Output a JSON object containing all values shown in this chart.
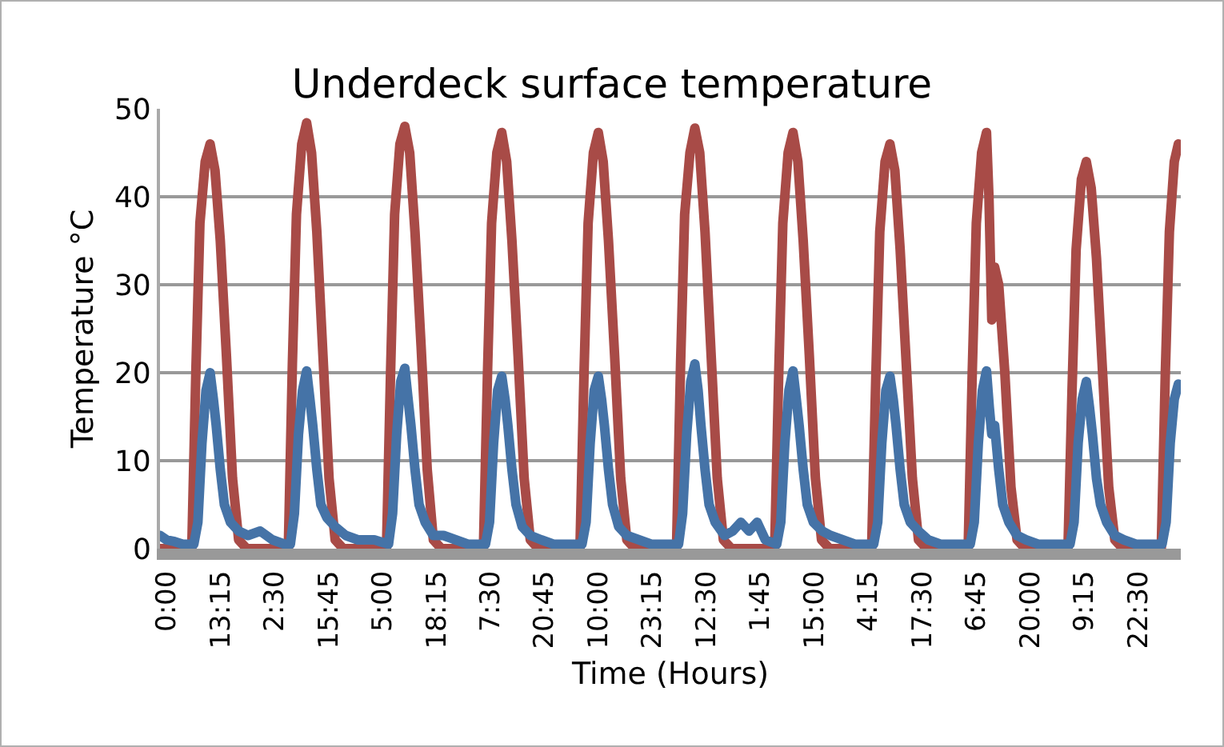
{
  "chart_data": {
    "type": "line",
    "title": "Underdeck surface temperature",
    "xlabel": "Time (Hours)",
    "ylabel": "Temperature °C",
    "xlim": [
      "--01-01T22:24",
      "--01-12T09:00"
    ],
    "ylim": [
      0,
      50
    ],
    "yticks": [
      0,
      10,
      20,
      30,
      40,
      50
    ],
    "xticks": [
      {
        "value": "--01-02T00:00",
        "label": "0:00"
      },
      {
        "value": "--01-02T13:15",
        "label": "13:15"
      },
      {
        "value": "--01-03T02:30",
        "label": "2:30"
      },
      {
        "value": "--01-03T15:45",
        "label": "15:45"
      },
      {
        "value": "--01-04T05:00",
        "label": "5:00"
      },
      {
        "value": "--01-04T18:15",
        "label": "18:15"
      },
      {
        "value": "--01-05T07:30",
        "label": "7:30"
      },
      {
        "value": "--01-05T20:45",
        "label": "20:45"
      },
      {
        "value": "--01-06T10:00",
        "label": "10:00"
      },
      {
        "value": "--01-06T23:15",
        "label": "23:15"
      },
      {
        "value": "--01-07T12:30",
        "label": "12:30"
      },
      {
        "value": "--01-08T01:45",
        "label": "1:45"
      },
      {
        "value": "--01-08T15:00",
        "label": "15:00"
      },
      {
        "value": "--01-09T04:15",
        "label": "4:15"
      },
      {
        "value": "--01-09T17:30",
        "label": "17:30"
      },
      {
        "value": "--01-10T06:45",
        "label": "6:45"
      },
      {
        "value": "--01-10T20:00",
        "label": "20:00"
      },
      {
        "value": "--01-11T09:15",
        "label": "9:15"
      },
      {
        "value": "--01-11T22:30",
        "label": "22:30"
      }
    ],
    "grid": "y",
    "marker": "none",
    "line_style": "solid",
    "series": [
      {
        "color": "#a84b47",
        "x": [
          "--01-01T22:24",
          "--01-02T06:12",
          "--01-02T07:12",
          "--01-02T08:12",
          "--01-02T09:30",
          "--01-02T10:42",
          "--01-02T11:54",
          "--01-02T13:12",
          "--01-02T14:42",
          "--01-02T16:12",
          "--01-02T17:42",
          "--01-02T19:42",
          "--01-03T05:54",
          "--01-03T06:54",
          "--01-03T07:54",
          "--01-03T09:12",
          "--01-03T10:24",
          "--01-03T11:36",
          "--01-03T12:54",
          "--01-03T14:24",
          "--01-03T15:54",
          "--01-03T17:24",
          "--01-03T19:24",
          "--01-04T06:00",
          "--01-04T07:00",
          "--01-04T08:00",
          "--01-04T09:18",
          "--01-04T10:30",
          "--01-04T11:42",
          "--01-04T13:00",
          "--01-04T14:30",
          "--01-04T16:00",
          "--01-04T17:30",
          "--01-04T19:30",
          "--01-05T05:48",
          "--01-05T06:48",
          "--01-05T07:48",
          "--01-05T09:06",
          "--01-05T10:18",
          "--01-05T11:30",
          "--01-05T12:48",
          "--01-05T14:18",
          "--01-05T15:48",
          "--01-05T17:18",
          "--01-05T19:18",
          "--01-06T05:30",
          "--01-06T06:30",
          "--01-06T07:30",
          "--01-06T08:48",
          "--01-06T10:00",
          "--01-06T11:12",
          "--01-06T12:30",
          "--01-06T14:00",
          "--01-06T15:30",
          "--01-06T17:00",
          "--01-06T19:00",
          "--01-07T05:12",
          "--01-07T06:12",
          "--01-07T07:12",
          "--01-07T08:30",
          "--01-07T09:42",
          "--01-07T10:54",
          "--01-07T12:12",
          "--01-07T13:42",
          "--01-07T15:12",
          "--01-07T16:42",
          "--01-07T18:42",
          "--01-08T05:18",
          "--01-08T06:18",
          "--01-08T07:18",
          "--01-08T08:36",
          "--01-08T09:48",
          "--01-08T11:00",
          "--01-08T12:18",
          "--01-08T13:48",
          "--01-08T15:18",
          "--01-08T16:48",
          "--01-08T18:48",
          "--01-09T05:06",
          "--01-09T06:06",
          "--01-09T07:06",
          "--01-09T08:24",
          "--01-09T09:36",
          "--01-09T10:48",
          "--01-09T12:06",
          "--01-09T13:36",
          "--01-09T15:06",
          "--01-09T16:36",
          "--01-09T18:36",
          "--01-10T04:48",
          "--01-10T05:48",
          "--01-10T06:48",
          "--01-10T08:06",
          "--01-10T09:18",
          "--01-10T09:54",
          "--01-10T10:36",
          "--01-10T11:18",
          "--01-10T12:18",
          "--01-10T13:48",
          "--01-10T15:18",
          "--01-10T16:48",
          "--01-10T18:48",
          "--01-11T05:18",
          "--01-11T06:18",
          "--01-11T07:18",
          "--01-11T08:36",
          "--01-11T09:48",
          "--01-11T11:00",
          "--01-11T12:18",
          "--01-11T13:48",
          "--01-11T15:18",
          "--01-11T16:48",
          "--01-11T18:48",
          "--01-12T04:12",
          "--01-12T05:12",
          "--01-12T06:12",
          "--01-12T07:24",
          "--01-12T08:24"
        ],
        "values": [
          0,
          0,
          20,
          37,
          44,
          46,
          43,
          35,
          22,
          8,
          1,
          0,
          0,
          21,
          38,
          46,
          48.4,
          45,
          36,
          22,
          8,
          1,
          0,
          0,
          20,
          38,
          46,
          48,
          45,
          36,
          23,
          9,
          1,
          0,
          0,
          20,
          37,
          45,
          47.3,
          44,
          35,
          22,
          8,
          1,
          0,
          0,
          20,
          37,
          45,
          47.3,
          44,
          35,
          22,
          8,
          1,
          0,
          0,
          21,
          38,
          45,
          47.8,
          45,
          36,
          22,
          8,
          1,
          0,
          0,
          20,
          37,
          45,
          47.3,
          44,
          35,
          22,
          8,
          1,
          0,
          0,
          19,
          36,
          44,
          46,
          43,
          34,
          21,
          8,
          1,
          0,
          0,
          20,
          37,
          45,
          47.3,
          40,
          26,
          32,
          30,
          20,
          7,
          1,
          0,
          0,
          18,
          34,
          42,
          44,
          41,
          33,
          20,
          7,
          1,
          0,
          0,
          20,
          36,
          44,
          46
        ]
      },
      {
        "color": "#4573a7",
        "x": [
          "--01-01T22:24",
          "--01-02T00:00",
          "--01-02T02:00",
          "--01-02T04:00",
          "--01-02T06:42",
          "--01-02T07:42",
          "--01-02T08:42",
          "--01-02T09:42",
          "--01-02T10:42",
          "--01-02T11:30",
          "--01-02T12:12",
          "--01-02T13:12",
          "--01-02T14:12",
          "--01-02T15:42",
          "--01-02T17:42",
          "--01-02T20:00",
          "--01-02T23:00",
          "--01-03T02:00",
          "--01-03T05:00",
          "--01-03T06:24",
          "--01-03T07:24",
          "--01-03T08:24",
          "--01-03T09:24",
          "--01-03T10:24",
          "--01-03T11:12",
          "--01-03T11:54",
          "--01-03T12:54",
          "--01-03T13:54",
          "--01-03T15:24",
          "--01-03T17:24",
          "--01-03T20:00",
          "--01-03T23:00",
          "--01-04T03:00",
          "--01-04T06:30",
          "--01-04T07:30",
          "--01-04T08:30",
          "--01-04T09:30",
          "--01-04T10:30",
          "--01-04T11:18",
          "--01-04T12:00",
          "--01-04T13:00",
          "--01-04T14:00",
          "--01-04T15:30",
          "--01-04T17:30",
          "--01-04T20:00",
          "--01-04T23:00",
          "--01-05T02:00",
          "--01-05T06:18",
          "--01-05T07:18",
          "--01-05T08:18",
          "--01-05T09:18",
          "--01-05T10:18",
          "--01-05T11:06",
          "--01-05T11:48",
          "--01-05T12:48",
          "--01-05T13:48",
          "--01-05T15:18",
          "--01-05T17:18",
          "--01-05T20:00",
          "--01-05T23:00",
          "--01-06T02:00",
          "--01-06T06:00",
          "--01-06T07:00",
          "--01-06T08:00",
          "--01-06T09:00",
          "--01-06T10:00",
          "--01-06T10:48",
          "--01-06T11:30",
          "--01-06T12:30",
          "--01-06T13:30",
          "--01-06T15:00",
          "--01-06T17:00",
          "--01-06T20:00",
          "--01-06T23:00",
          "--01-07T02:00",
          "--01-07T05:42",
          "--01-07T06:42",
          "--01-07T07:42",
          "--01-07T08:42",
          "--01-07T09:42",
          "--01-07T10:30",
          "--01-07T11:12",
          "--01-07T12:12",
          "--01-07T13:12",
          "--01-07T14:42",
          "--01-07T17:00",
          "--01-07T19:00",
          "--01-07T21:00",
          "--01-07T23:00",
          "--01-08T01:00",
          "--01-08T03:00",
          "--01-08T05:48",
          "--01-08T06:48",
          "--01-08T07:48",
          "--01-08T08:48",
          "--01-08T09:48",
          "--01-08T10:36",
          "--01-08T11:18",
          "--01-08T12:18",
          "--01-08T13:18",
          "--01-08T14:48",
          "--01-08T17:00",
          "--01-08T19:00",
          "--01-08T22:00",
          "--01-09T01:00",
          "--01-09T05:36",
          "--01-09T06:36",
          "--01-09T07:36",
          "--01-09T08:36",
          "--01-09T09:36",
          "--01-09T10:24",
          "--01-09T11:06",
          "--01-09T12:06",
          "--01-09T13:06",
          "--01-09T14:36",
          "--01-09T16:36",
          "--01-09T19:00",
          "--01-09T22:00",
          "--01-10T02:00",
          "--01-10T05:18",
          "--01-10T06:18",
          "--01-10T07:18",
          "--01-10T08:18",
          "--01-10T09:18",
          "--01-10T10:00",
          "--01-10T10:36",
          "--01-10T11:18",
          "--01-10T12:18",
          "--01-10T13:18",
          "--01-10T14:48",
          "--01-10T16:48",
          "--01-10T19:00",
          "--01-10T22:00",
          "--01-11T02:00",
          "--01-11T05:48",
          "--01-11T06:48",
          "--01-11T07:48",
          "--01-11T08:48",
          "--01-11T09:48",
          "--01-11T10:36",
          "--01-11T11:18",
          "--01-11T12:18",
          "--01-11T13:18",
          "--01-11T14:48",
          "--01-11T16:48",
          "--01-11T19:00",
          "--01-11T22:00",
          "--01-12T01:00",
          "--01-12T04:24",
          "--01-12T05:24",
          "--01-12T06:24",
          "--01-12T07:24",
          "--01-12T08:24"
        ],
        "values": [
          1.5,
          1,
          0.8,
          0.5,
          0.5,
          3,
          12,
          18,
          20,
          17,
          14,
          9,
          5,
          3,
          2,
          1.5,
          2,
          1,
          0.5,
          0.5,
          4,
          13,
          18,
          20.2,
          17,
          14,
          9,
          5,
          3.5,
          2.5,
          1.5,
          1,
          1,
          0.5,
          4,
          13,
          19,
          20.5,
          17,
          14,
          9,
          5,
          3,
          1.5,
          1.5,
          1,
          0.5,
          0.5,
          3,
          12,
          18,
          19.6,
          17,
          14,
          9,
          5,
          2.5,
          1.5,
          1,
          0.5,
          0.5,
          0.5,
          3,
          12,
          18,
          19.6,
          17,
          14,
          9,
          5,
          2.5,
          1.5,
          1,
          0.5,
          0.5,
          0.5,
          4,
          13,
          19,
          21,
          18,
          14,
          9,
          5,
          3,
          1.5,
          2,
          3,
          2,
          3,
          1,
          0.5,
          3,
          12,
          18,
          20.2,
          17,
          14,
          9,
          5,
          3,
          2,
          1.5,
          1,
          0.5,
          0.5,
          3,
          12,
          18,
          19.6,
          17,
          14,
          9,
          5,
          3,
          2,
          1,
          0.5,
          0.5,
          0.5,
          3,
          12,
          18,
          20.2,
          16,
          13,
          14,
          9,
          5,
          3,
          1.5,
          1,
          0.5,
          0.5,
          0.5,
          3,
          12,
          17,
          19,
          16,
          13,
          8,
          5,
          3,
          1.5,
          1,
          0.5,
          0.5,
          0.5,
          3,
          12,
          17,
          18.7
        ]
      }
    ]
  }
}
